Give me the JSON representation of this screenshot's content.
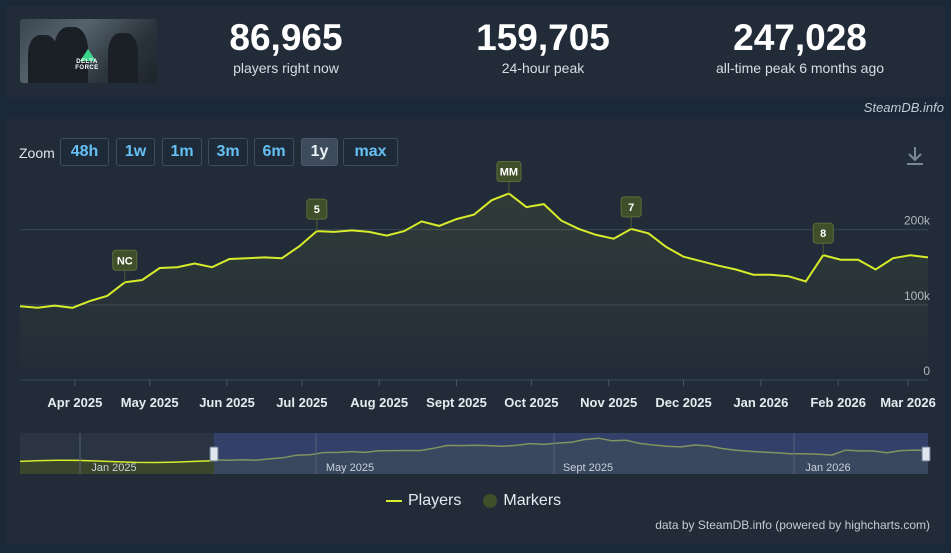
{
  "stats": [
    {
      "value": "86,965",
      "label": "players right now"
    },
    {
      "value": "159,705",
      "label": "24-hour peak"
    },
    {
      "value": "247,028",
      "label": "all-time peak 6 months ago"
    }
  ],
  "game": {
    "logo_text": "DELTA FORCE"
  },
  "credit_top": "SteamDB.info",
  "zoom": {
    "label": "Zoom",
    "buttons": [
      "48h",
      "1w",
      "1m",
      "3m",
      "6m",
      "1y",
      "max"
    ],
    "active": "1y"
  },
  "legend": {
    "players": "Players",
    "markers": "Markers"
  },
  "credit_bottom": "data by SteamDB.info (powered by highcharts.com)",
  "colors": {
    "line": "#d7ec2a",
    "marker_fill": "#3e4f2a",
    "button_text": "#66c0f4",
    "navigator_mask": "#3a4a8a"
  },
  "chart_data": {
    "type": "area",
    "series": [
      {
        "name": "Players",
        "color": "#d7ec2a"
      }
    ],
    "x_tick_labels": [
      "Apr 2025",
      "May 2025",
      "Jun 2025",
      "Jul 2025",
      "Aug 2025",
      "Sept 2025",
      "Oct 2025",
      "Nov 2025",
      "Dec 2025",
      "Jan 2026",
      "Feb 2026",
      "Mar 2026"
    ],
    "y_tick_labels": [
      "0",
      "100k",
      "200k"
    ],
    "ylim": [
      0,
      270000
    ],
    "x": [
      "2025-03-10",
      "2025-03-17",
      "2025-03-24",
      "2025-03-31",
      "2025-04-07",
      "2025-04-14",
      "2025-04-21",
      "2025-04-28",
      "2025-05-05",
      "2025-05-12",
      "2025-05-19",
      "2025-05-26",
      "2025-06-02",
      "2025-06-09",
      "2025-06-16",
      "2025-06-23",
      "2025-06-30",
      "2025-07-07",
      "2025-07-14",
      "2025-07-21",
      "2025-07-28",
      "2025-08-04",
      "2025-08-11",
      "2025-08-18",
      "2025-08-25",
      "2025-09-01",
      "2025-09-08",
      "2025-09-15",
      "2025-09-22",
      "2025-09-29",
      "2025-10-06",
      "2025-10-13",
      "2025-10-20",
      "2025-10-27",
      "2025-11-03",
      "2025-11-10",
      "2025-11-17",
      "2025-11-24",
      "2025-12-01",
      "2025-12-08",
      "2025-12-15",
      "2025-12-22",
      "2025-12-29",
      "2026-01-05",
      "2026-01-12",
      "2026-01-19",
      "2026-01-26",
      "2026-02-02",
      "2026-02-09",
      "2026-02-16",
      "2026-02-23",
      "2026-03-02",
      "2026-03-09"
    ],
    "y": [
      98000,
      96000,
      99000,
      96000,
      105000,
      112000,
      130000,
      133000,
      149000,
      150000,
      155000,
      150000,
      161000,
      162000,
      163000,
      162000,
      178000,
      198000,
      197000,
      199000,
      197000,
      192000,
      198000,
      211000,
      205000,
      214000,
      220000,
      239000,
      248000,
      230000,
      234000,
      212000,
      201000,
      193000,
      188000,
      201000,
      195000,
      177000,
      164000,
      158000,
      152000,
      147000,
      140000,
      140000,
      138000,
      131000,
      166000,
      160000,
      160000,
      147000,
      162000,
      166000,
      163000
    ],
    "markers": [
      {
        "label": "NC",
        "x": "2025-04-21",
        "y": 130000
      },
      {
        "label": "5",
        "x": "2025-07-07",
        "y": 198000
      },
      {
        "label": "MM",
        "x": "2025-09-22",
        "y": 248000
      },
      {
        "label": "7",
        "x": "2025-11-10",
        "y": 201000
      },
      {
        "label": "8",
        "x": "2026-01-26",
        "y": 166000
      }
    ],
    "navigator": {
      "labels": [
        "Jan 2025",
        "May 2025",
        "Sept 2025",
        "Jan 2026"
      ]
    }
  }
}
